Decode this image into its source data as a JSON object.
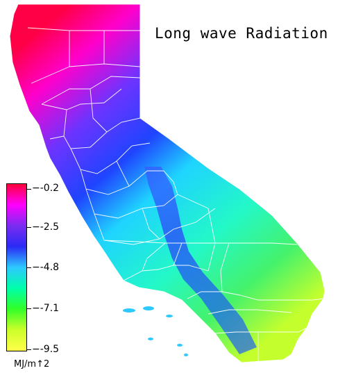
{
  "title": "Long wave Radiation",
  "legend": {
    "labels": [
      "−-0.2",
      "−-2.5",
      "−-4.8",
      "−-7.1",
      "−-9.5"
    ],
    "unit": "MJ/m↑2",
    "color_stops": [
      "#ff003c",
      "#ff00ff",
      "#7a2cf0",
      "#2a2af5",
      "#2ec9ff",
      "#00ffaa",
      "#32ff28",
      "#ccff2a",
      "#ffff4a"
    ]
  }
}
